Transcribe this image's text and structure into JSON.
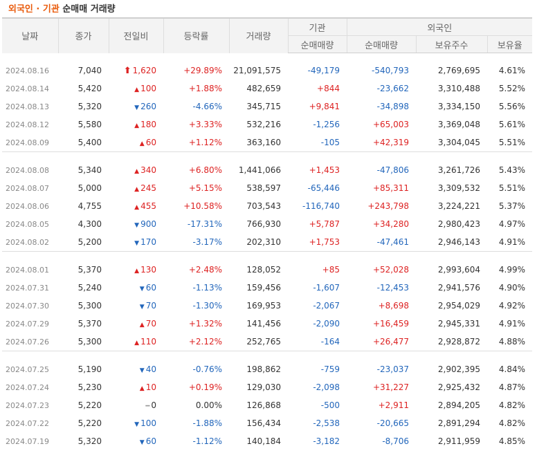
{
  "header": {
    "title_part1": "외국인 · 기관",
    "title_part2": "순매매 거래량"
  },
  "columns": {
    "date": "날짜",
    "close": "종가",
    "change": "전일비",
    "rate": "등락률",
    "volume": "거래량",
    "inst_group": "기관",
    "inst_net": "순매매량",
    "foreign_group": "외국인",
    "foreign_net": "순매매량",
    "foreign_holdings": "보유주수",
    "foreign_ratio": "보유율"
  },
  "colors": {
    "up": "#dd2222",
    "down": "#2266bb",
    "accent": "#e95b0c"
  },
  "groups": [
    [
      {
        "date": "2024.08.16",
        "close": "7,040",
        "dir": "limit",
        "change": "1,620",
        "rate": "+29.89%",
        "volume": "21,091,575",
        "inst": "-49,179",
        "foreign": "-540,793",
        "holdings": "2,769,695",
        "ratio": "4.61%"
      },
      {
        "date": "2024.08.14",
        "close": "5,420",
        "dir": "up",
        "change": "100",
        "rate": "+1.88%",
        "volume": "482,659",
        "inst": "+844",
        "foreign": "-23,662",
        "holdings": "3,310,488",
        "ratio": "5.52%"
      },
      {
        "date": "2024.08.13",
        "close": "5,320",
        "dir": "down",
        "change": "260",
        "rate": "-4.66%",
        "volume": "345,715",
        "inst": "+9,841",
        "foreign": "-34,898",
        "holdings": "3,334,150",
        "ratio": "5.56%"
      },
      {
        "date": "2024.08.12",
        "close": "5,580",
        "dir": "up",
        "change": "180",
        "rate": "+3.33%",
        "volume": "532,216",
        "inst": "-1,256",
        "foreign": "+65,003",
        "holdings": "3,369,048",
        "ratio": "5.61%"
      },
      {
        "date": "2024.08.09",
        "close": "5,400",
        "dir": "up",
        "change": "60",
        "rate": "+1.12%",
        "volume": "363,160",
        "inst": "-105",
        "foreign": "+42,319",
        "holdings": "3,304,045",
        "ratio": "5.51%"
      }
    ],
    [
      {
        "date": "2024.08.08",
        "close": "5,340",
        "dir": "up",
        "change": "340",
        "rate": "+6.80%",
        "volume": "1,441,066",
        "inst": "+1,453",
        "foreign": "-47,806",
        "holdings": "3,261,726",
        "ratio": "5.43%"
      },
      {
        "date": "2024.08.07",
        "close": "5,000",
        "dir": "up",
        "change": "245",
        "rate": "+5.15%",
        "volume": "538,597",
        "inst": "-65,446",
        "foreign": "+85,311",
        "holdings": "3,309,532",
        "ratio": "5.51%"
      },
      {
        "date": "2024.08.06",
        "close": "4,755",
        "dir": "up",
        "change": "455",
        "rate": "+10.58%",
        "volume": "703,543",
        "inst": "-116,740",
        "foreign": "+243,798",
        "holdings": "3,224,221",
        "ratio": "5.37%"
      },
      {
        "date": "2024.08.05",
        "close": "4,300",
        "dir": "down",
        "change": "900",
        "rate": "-17.31%",
        "volume": "766,930",
        "inst": "+5,787",
        "foreign": "+34,280",
        "holdings": "2,980,423",
        "ratio": "4.97%"
      },
      {
        "date": "2024.08.02",
        "close": "5,200",
        "dir": "down",
        "change": "170",
        "rate": "-3.17%",
        "volume": "202,310",
        "inst": "+1,753",
        "foreign": "-47,461",
        "holdings": "2,946,143",
        "ratio": "4.91%"
      }
    ],
    [
      {
        "date": "2024.08.01",
        "close": "5,370",
        "dir": "up",
        "change": "130",
        "rate": "+2.48%",
        "volume": "128,052",
        "inst": "+85",
        "foreign": "+52,028",
        "holdings": "2,993,604",
        "ratio": "4.99%"
      },
      {
        "date": "2024.07.31",
        "close": "5,240",
        "dir": "down",
        "change": "60",
        "rate": "-1.13%",
        "volume": "159,456",
        "inst": "-1,607",
        "foreign": "-12,453",
        "holdings": "2,941,576",
        "ratio": "4.90%"
      },
      {
        "date": "2024.07.30",
        "close": "5,300",
        "dir": "down",
        "change": "70",
        "rate": "-1.30%",
        "volume": "169,953",
        "inst": "-2,067",
        "foreign": "+8,698",
        "holdings": "2,954,029",
        "ratio": "4.92%"
      },
      {
        "date": "2024.07.29",
        "close": "5,370",
        "dir": "up",
        "change": "70",
        "rate": "+1.32%",
        "volume": "141,456",
        "inst": "-2,090",
        "foreign": "+16,459",
        "holdings": "2,945,331",
        "ratio": "4.91%"
      },
      {
        "date": "2024.07.26",
        "close": "5,300",
        "dir": "up",
        "change": "110",
        "rate": "+2.12%",
        "volume": "252,765",
        "inst": "-164",
        "foreign": "+26,477",
        "holdings": "2,928,872",
        "ratio": "4.88%"
      }
    ],
    [
      {
        "date": "2024.07.25",
        "close": "5,190",
        "dir": "down",
        "change": "40",
        "rate": "-0.76%",
        "volume": "198,862",
        "inst": "-759",
        "foreign": "-23,037",
        "holdings": "2,902,395",
        "ratio": "4.84%"
      },
      {
        "date": "2024.07.24",
        "close": "5,230",
        "dir": "up",
        "change": "10",
        "rate": "+0.19%",
        "volume": "129,030",
        "inst": "-2,098",
        "foreign": "+31,227",
        "holdings": "2,925,432",
        "ratio": "4.87%"
      },
      {
        "date": "2024.07.23",
        "close": "5,220",
        "dir": "flat",
        "change": "0",
        "rate": "0.00%",
        "volume": "126,868",
        "inst": "-500",
        "foreign": "+2,911",
        "holdings": "2,894,205",
        "ratio": "4.82%"
      },
      {
        "date": "2024.07.22",
        "close": "5,220",
        "dir": "down",
        "change": "100",
        "rate": "-1.88%",
        "volume": "156,434",
        "inst": "-2,538",
        "foreign": "-20,665",
        "holdings": "2,891,294",
        "ratio": "4.82%"
      },
      {
        "date": "2024.07.19",
        "close": "5,320",
        "dir": "down",
        "change": "60",
        "rate": "-1.12%",
        "volume": "140,184",
        "inst": "-3,182",
        "foreign": "-8,706",
        "holdings": "2,911,959",
        "ratio": "4.85%"
      }
    ]
  ]
}
